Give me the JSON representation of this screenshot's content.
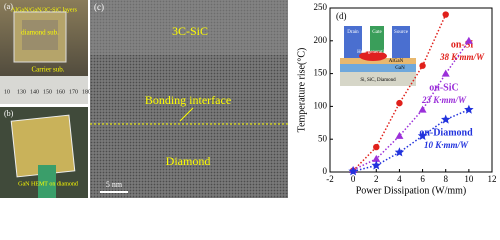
{
  "panel_a": {
    "label": "(a)",
    "layers": "AlGaN/GaN/3C-SiC layers",
    "diamond": "diamond sub.",
    "carrier": "Carrier sub.",
    "ruler": [
      "10",
      "130",
      "140",
      "150",
      "160",
      "170",
      "180"
    ]
  },
  "panel_b": {
    "label": "(b)",
    "caption": "GaN HEMT on diamond"
  },
  "panel_c": {
    "label": "(c)",
    "top": "3C-SiC",
    "interface": "Bonding interface",
    "bottom": "Diamond",
    "scale": "5 nm"
  },
  "chart_data": {
    "type": "scatter",
    "label": "(d)",
    "x_label": "Power Dissipation (W/mm)",
    "y_label": "Temperature rise(°C)",
    "xlim": [
      -2,
      12
    ],
    "xticks": [
      -2,
      0,
      2,
      4,
      6,
      8,
      10,
      12
    ],
    "ylim": [
      0,
      250
    ],
    "yticks": [
      0,
      50,
      100,
      150,
      200,
      250
    ],
    "inset": {
      "drain": "Drain",
      "gate": "Gate",
      "source": "Source",
      "algan": "AlGaN",
      "gan": "GaN",
      "heat": "Heat generating",
      "sub": "Si, SiC, Diamond"
    },
    "series": [
      {
        "name": "on-Si",
        "note": "38 K·mm/W",
        "color": "#e0201b",
        "marker": "circle",
        "x": [
          0,
          2,
          4,
          6,
          8
        ],
        "values": [
          2,
          38,
          105,
          162,
          240
        ]
      },
      {
        "name": "on-SiC",
        "note": "23 K·mm/W",
        "color": "#9b30d9",
        "marker": "triangle",
        "x": [
          0,
          2,
          4,
          6,
          8,
          10
        ],
        "values": [
          3,
          20,
          55,
          95,
          150,
          200
        ]
      },
      {
        "name": "on-Diamond",
        "note": "10 K·mm/W",
        "color": "#2233dd",
        "marker": "star",
        "x": [
          0,
          2,
          4,
          6,
          8,
          10
        ],
        "values": [
          1,
          10,
          30,
          55,
          80,
          95
        ]
      }
    ]
  }
}
